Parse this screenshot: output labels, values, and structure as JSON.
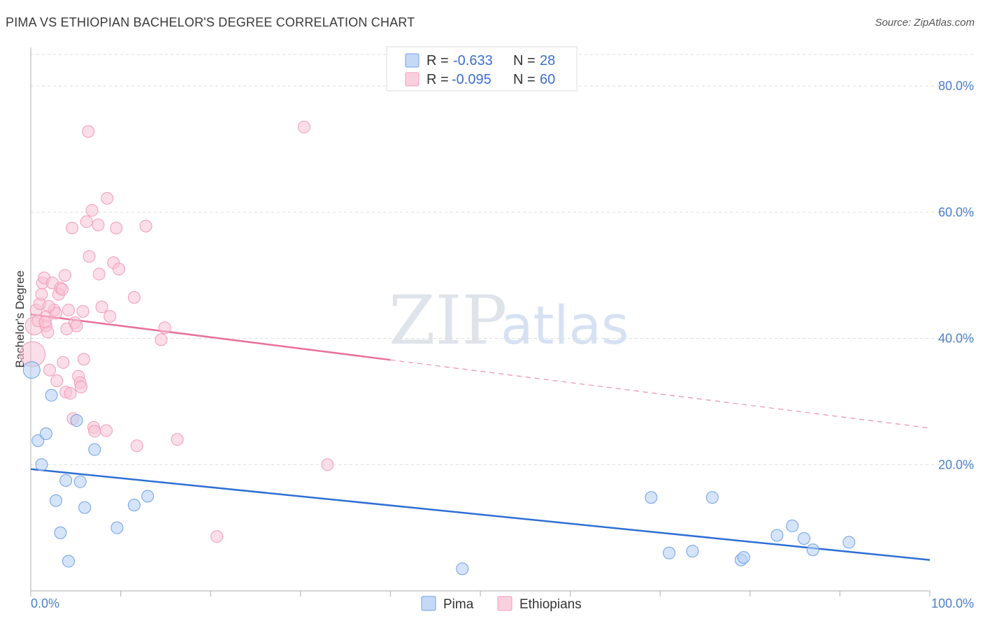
{
  "title": "PIMA VS ETHIOPIAN BACHELOR'S DEGREE CORRELATION CHART",
  "source": "Source: ZipAtlas.com",
  "watermark": {
    "zip": "ZIP",
    "atlas": "atlas"
  },
  "legend": {
    "rows": [
      {
        "r_label": "R =",
        "r_value": "-0.633",
        "n_label": "N =",
        "n_value": "28",
        "color": "#6fa0e8"
      },
      {
        "r_label": "R =",
        "r_value": "-0.095",
        "n_label": "N =",
        "n_value": "60",
        "color": "#f19bb8"
      }
    ]
  },
  "bottom_legend": {
    "pima": "Pima",
    "ethiopians": "Ethiopians"
  },
  "chart_data": {
    "type": "scatter",
    "title": "PIMA VS ETHIOPIAN BACHELOR'S DEGREE CORRELATION CHART",
    "xlabel": "",
    "ylabel": "Bachelor's Degree",
    "xlim": [
      0,
      100
    ],
    "ylim": [
      0,
      85
    ],
    "x_tick_labels": [
      "0.0%",
      "100.0%"
    ],
    "y_ticks": [
      20,
      40,
      60,
      80
    ],
    "y_tick_labels": [
      "20.0%",
      "40.0%",
      "60.0%",
      "80.0%"
    ],
    "series": [
      {
        "name": "Pima",
        "color": "#6fa0e8",
        "line_color": "#2e6fd4",
        "trend": {
          "x0": 0,
          "y0": 19.3,
          "x1": 100,
          "y1": 4.9
        },
        "points": [
          [
            0.1,
            35.0
          ],
          [
            0.8,
            23.8
          ],
          [
            1.2,
            20.0
          ],
          [
            1.7,
            24.9
          ],
          [
            2.3,
            31.0
          ],
          [
            2.8,
            14.3
          ],
          [
            3.3,
            9.2
          ],
          [
            3.9,
            17.5
          ],
          [
            4.2,
            4.7
          ],
          [
            5.1,
            27.0
          ],
          [
            5.5,
            17.3
          ],
          [
            6.0,
            13.2
          ],
          [
            7.1,
            22.4
          ],
          [
            9.6,
            10.0
          ],
          [
            11.5,
            13.6
          ],
          [
            13.0,
            15.0
          ],
          [
            48.0,
            3.5
          ],
          [
            69.0,
            14.8
          ],
          [
            71.0,
            6.0
          ],
          [
            73.6,
            6.3
          ],
          [
            75.8,
            14.8
          ],
          [
            79.0,
            4.9
          ],
          [
            79.3,
            5.3
          ],
          [
            83.0,
            8.8
          ],
          [
            84.7,
            10.3
          ],
          [
            86.0,
            8.3
          ],
          [
            87.0,
            6.5
          ],
          [
            91.0,
            7.7
          ]
        ]
      },
      {
        "name": "Ethiopians",
        "color": "#f19bb8",
        "line_color": "#e8709a",
        "trend": {
          "x0": 0,
          "y0": 43.8,
          "x1": 40,
          "y1": 36.6
        },
        "trend_dashed": {
          "x0": 40,
          "y0": 36.6,
          "x1": 100,
          "y1": 25.8
        },
        "points": [
          [
            0.2,
            37.5
          ],
          [
            0.4,
            42.0
          ],
          [
            0.6,
            44.5
          ],
          [
            0.8,
            42.8
          ],
          [
            1.0,
            45.5
          ],
          [
            1.2,
            47.0
          ],
          [
            1.3,
            48.8
          ],
          [
            1.5,
            49.6
          ],
          [
            1.7,
            42.0
          ],
          [
            1.8,
            43.5
          ],
          [
            1.9,
            41.0
          ],
          [
            2.1,
            35.0
          ],
          [
            2.4,
            48.8
          ],
          [
            2.6,
            44.5
          ],
          [
            2.8,
            44.0
          ],
          [
            2.9,
            33.3
          ],
          [
            3.1,
            47.0
          ],
          [
            3.3,
            48.0
          ],
          [
            3.5,
            47.8
          ],
          [
            3.6,
            36.2
          ],
          [
            3.8,
            50.0
          ],
          [
            3.9,
            31.5
          ],
          [
            4.0,
            41.5
          ],
          [
            4.2,
            44.5
          ],
          [
            4.4,
            31.3
          ],
          [
            4.6,
            57.5
          ],
          [
            4.7,
            27.3
          ],
          [
            4.9,
            42.5
          ],
          [
            5.1,
            42.0
          ],
          [
            5.3,
            34.0
          ],
          [
            5.5,
            33.0
          ],
          [
            5.6,
            32.3
          ],
          [
            5.8,
            44.3
          ],
          [
            5.9,
            36.7
          ],
          [
            6.2,
            58.5
          ],
          [
            6.4,
            72.8
          ],
          [
            6.5,
            53.0
          ],
          [
            6.8,
            60.3
          ],
          [
            7.0,
            25.9
          ],
          [
            7.1,
            25.3
          ],
          [
            7.5,
            58.0
          ],
          [
            7.6,
            50.2
          ],
          [
            7.9,
            45.0
          ],
          [
            8.4,
            25.4
          ],
          [
            8.5,
            62.2
          ],
          [
            8.8,
            43.5
          ],
          [
            9.2,
            52.0
          ],
          [
            9.5,
            57.5
          ],
          [
            9.8,
            51.0
          ],
          [
            11.5,
            46.5
          ],
          [
            11.8,
            23.0
          ],
          [
            12.8,
            57.8
          ],
          [
            14.5,
            39.8
          ],
          [
            14.9,
            41.7
          ],
          [
            16.3,
            24.0
          ],
          [
            20.7,
            8.6
          ],
          [
            30.4,
            73.5
          ],
          [
            33.0,
            20.0
          ],
          [
            1.6,
            42.6
          ],
          [
            2.0,
            45.1
          ]
        ]
      }
    ]
  }
}
